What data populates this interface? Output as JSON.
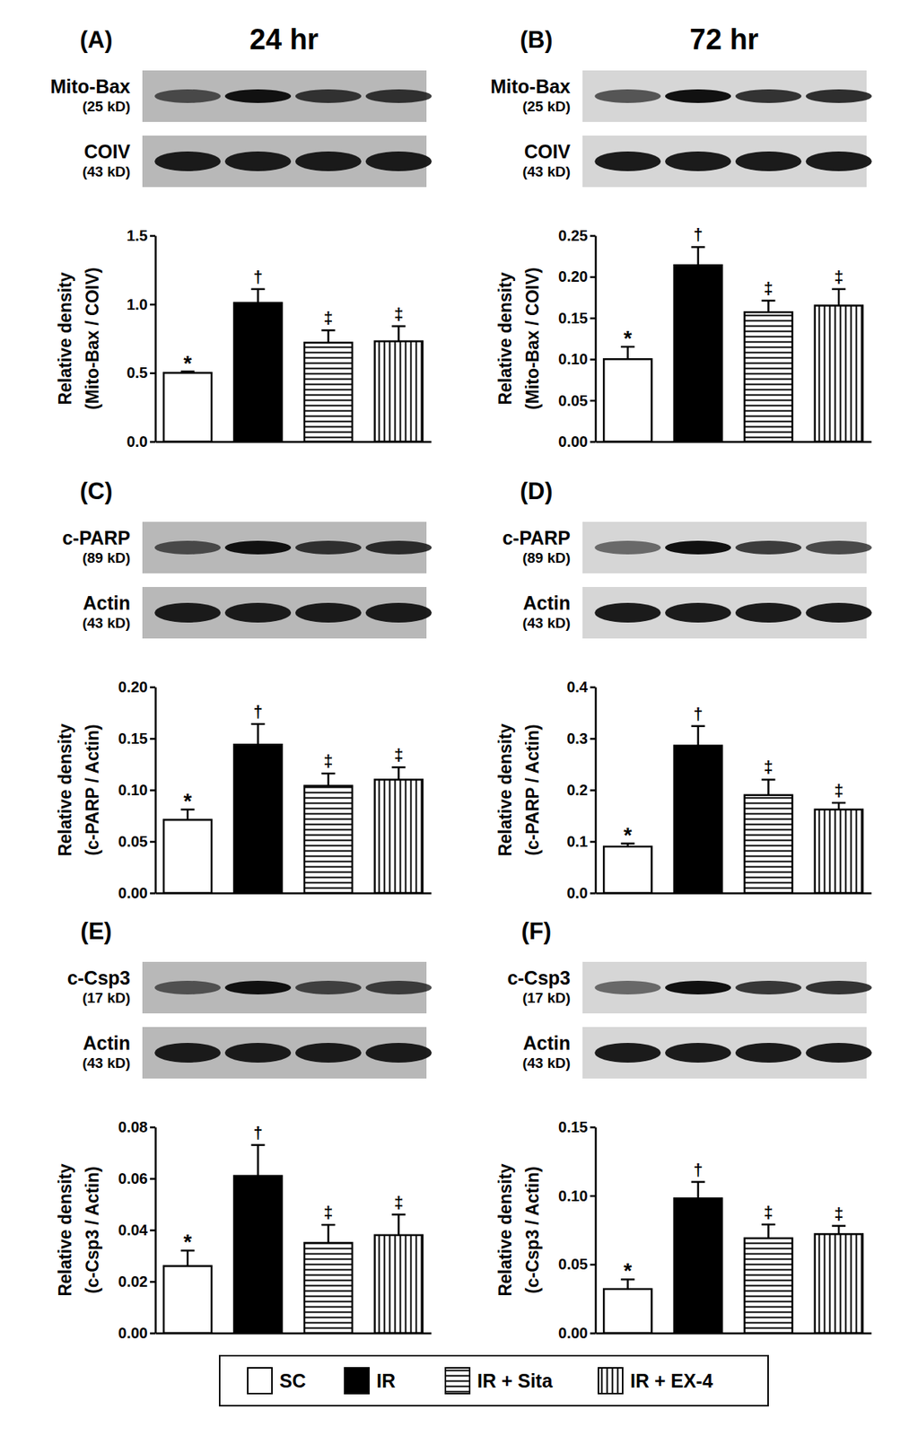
{
  "chart_data": [
    {
      "type": "bar",
      "panel": "(A)",
      "title": "24 hr",
      "blots": [
        {
          "label": "Mito-Bax",
          "size": "(25 kD)"
        },
        {
          "label": "COIV",
          "size": "(43 kD)"
        }
      ],
      "y_label": [
        "Relative density",
        "(Mito-Bax / COIV)"
      ],
      "categories": [
        "SC",
        "IR",
        "IR + Sita",
        "IR + EX-4"
      ],
      "values": [
        0.5,
        1.01,
        0.72,
        0.73
      ],
      "errors": [
        0.01,
        0.1,
        0.09,
        0.11
      ],
      "annotations": [
        "*",
        "†",
        "‡",
        "‡"
      ],
      "colors": [
        "#ffffff",
        "#000000",
        "#ffffff",
        "#ffffff"
      ],
      "ylim": [
        0,
        1.5
      ],
      "yticks": [
        {
          "value": 0,
          "label": "0.0"
        },
        0.5,
        {
          "value": 1,
          "label": "1.0"
        },
        1.5
      ],
      "tick_labels": "y",
      "legend": "bottom"
    },
    {
      "type": "bar",
      "panel": "(B)",
      "title": "72 hr",
      "blots": [
        {
          "label": "Mito-Bax",
          "size": "(25 kD)"
        },
        {
          "label": "COIV",
          "size": "(43 kD)"
        }
      ],
      "y_label": [
        "Relative density",
        "(Mito-Bax / COIV)"
      ],
      "categories": [
        "SC",
        "IR",
        "IR + Sita",
        "IR + EX-4"
      ],
      "values": [
        0.1,
        0.214,
        0.157,
        0.165
      ],
      "errors": [
        0.015,
        0.022,
        0.014,
        0.02
      ],
      "annotations": [
        "*",
        "†",
        "‡",
        "‡"
      ],
      "colors": [
        "#ffffff",
        "#000000",
        "#ffffff",
        "#ffffff"
      ],
      "ylim": [
        0,
        0.25
      ],
      "yticks": [
        {
          "value": 0,
          "label": "0.00"
        },
        0.05,
        {
          "value": 0.1,
          "label": "0.10"
        },
        0.15,
        {
          "value": 0.2,
          "label": "0.20"
        },
        0.25
      ],
      "tick_labels": "y"
    },
    {
      "type": "bar",
      "panel": "(C)",
      "blots": [
        {
          "label": "c-PARP",
          "size": "(89 kD)"
        },
        {
          "label": "Actin",
          "size": "(43 kD)"
        }
      ],
      "y_label": [
        "Relative density",
        "(c-PARP / Actin)"
      ],
      "categories": [
        "SC",
        "IR",
        "IR + Sita",
        "IR + EX-4"
      ],
      "values": [
        0.071,
        0.144,
        0.104,
        0.11
      ],
      "errors": [
        0.01,
        0.02,
        0.012,
        0.012
      ],
      "annotations": [
        "*",
        "†",
        "‡",
        "‡"
      ],
      "colors": [
        "#ffffff",
        "#000000",
        "#ffffff",
        "#ffffff"
      ],
      "ylim": [
        0,
        0.2
      ],
      "yticks": [
        {
          "value": 0,
          "label": "0.00"
        },
        0.05,
        {
          "value": 0.1,
          "label": "0.10"
        },
        0.15,
        {
          "value": 0.2,
          "label": "0.20"
        }
      ],
      "tick_labels": "y"
    },
    {
      "type": "bar",
      "panel": "(D)",
      "blots": [
        {
          "label": "c-PARP",
          "size": "(89 kD)"
        },
        {
          "label": "Actin",
          "size": "(43 kD)"
        }
      ],
      "y_label": [
        "Relative density",
        "(c-PARP / Actin)"
      ],
      "categories": [
        "SC",
        "IR",
        "IR + Sita",
        "IR + EX-4"
      ],
      "values": [
        0.09,
        0.286,
        0.19,
        0.162
      ],
      "errors": [
        0.006,
        0.038,
        0.03,
        0.013
      ],
      "annotations": [
        "*",
        "†",
        "‡",
        "‡"
      ],
      "colors": [
        "#ffffff",
        "#000000",
        "#ffffff",
        "#ffffff"
      ],
      "ylim": [
        0,
        0.4
      ],
      "yticks": [
        {
          "value": 0,
          "label": "0.0"
        },
        0.1,
        0.2,
        0.3,
        0.4
      ],
      "tick_labels": "y"
    },
    {
      "type": "bar",
      "panel": "(E)",
      "blots": [
        {
          "label": "c-Csp3",
          "size": "(17 kD)"
        },
        {
          "label": "Actin",
          "size": "(43 kD)"
        }
      ],
      "y_label": [
        "Relative density",
        "(c-Csp3 / Actin)"
      ],
      "categories": [
        "SC",
        "IR",
        "IR + Sita",
        "IR + EX-4"
      ],
      "values": [
        0.026,
        0.061,
        0.035,
        0.038
      ],
      "errors": [
        0.006,
        0.012,
        0.007,
        0.008
      ],
      "annotations": [
        "*",
        "†",
        "‡",
        "‡"
      ],
      "colors": [
        "#ffffff",
        "#000000",
        "#ffffff",
        "#ffffff"
      ],
      "ylim": [
        0,
        0.08
      ],
      "yticks": [
        {
          "value": 0,
          "label": "0.00"
        },
        0.02,
        0.04,
        0.06,
        0.08
      ],
      "tick_labels": "y"
    },
    {
      "type": "bar",
      "panel": "(F)",
      "blots": [
        {
          "label": "c-Csp3",
          "size": "(17 kD)"
        },
        {
          "label": "Actin",
          "size": "(43 kD)"
        }
      ],
      "y_label": [
        "Relative density",
        "(c-Csp3 / Actin)"
      ],
      "categories": [
        "SC",
        "IR",
        "IR + Sita",
        "IR + EX-4"
      ],
      "values": [
        0.032,
        0.098,
        0.069,
        0.072
      ],
      "errors": [
        0.007,
        0.012,
        0.01,
        0.006
      ],
      "annotations": [
        "*",
        "†",
        "‡",
        "‡"
      ],
      "colors": [
        "#ffffff",
        "#000000",
        "#ffffff",
        "#ffffff"
      ],
      "ylim": [
        0,
        0.15
      ],
      "yticks": [
        {
          "value": 0,
          "label": "0.00"
        },
        0.05,
        {
          "value": 0.1,
          "label": "0.10"
        },
        0.15
      ],
      "tick_labels": "y"
    }
  ]
}
